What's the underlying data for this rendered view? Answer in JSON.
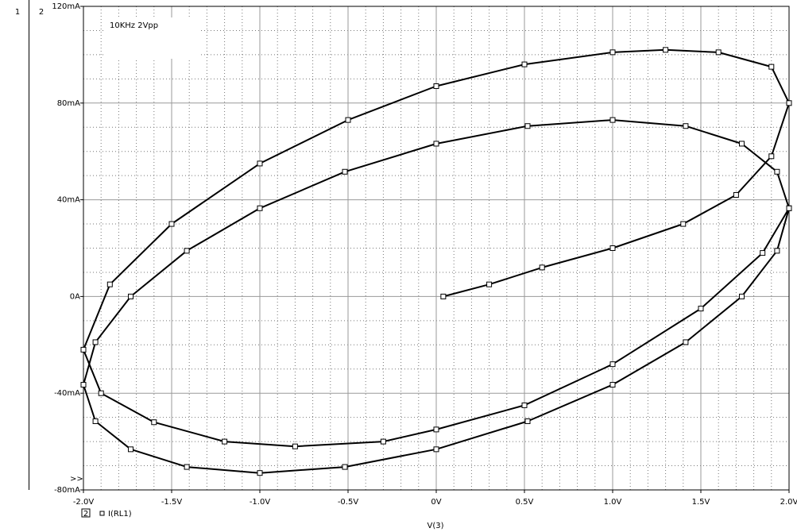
{
  "chart_data": {
    "type": "line",
    "plot_labels": [
      "1",
      "2"
    ],
    "annotation": "10KHz 2Vpp",
    "marker_label": ">>",
    "xlabel": "V(3)",
    "xlim": [
      -2,
      2
    ],
    "ylim": [
      -80,
      120
    ],
    "xticks": [
      {
        "value": -2,
        "label": "-2.0V"
      },
      {
        "value": -1.5,
        "label": "-1.5V"
      },
      {
        "value": -1,
        "label": "-1.0V"
      },
      {
        "value": -0.5,
        "label": "-0.5V"
      },
      {
        "value": 0,
        "label": "0V"
      },
      {
        "value": 0.5,
        "label": "0.5V"
      },
      {
        "value": 1,
        "label": "1.0V"
      },
      {
        "value": 1.5,
        "label": "1.5V"
      },
      {
        "value": 2,
        "label": "2.0V"
      }
    ],
    "yticks": [
      {
        "value": -80,
        "label": "-80mA"
      },
      {
        "value": -40,
        "label": "-40mA"
      },
      {
        "value": 0,
        "label": "0A"
      },
      {
        "value": 40,
        "label": "40mA"
      },
      {
        "value": 80,
        "label": "80mA"
      },
      {
        "value": 120,
        "label": "120mA"
      }
    ],
    "grid": true,
    "series": [
      {
        "index": "2",
        "name": "I(RL1)",
        "color": "#000000",
        "x": [
          0.04,
          0.3,
          0.6,
          1.0,
          1.4,
          1.7,
          1.9,
          2.0,
          1.9,
          1.6,
          1.3,
          1.0,
          0.5,
          0,
          -0.5,
          -1.0,
          -1.5,
          -1.85,
          -2.0,
          -1.9,
          -1.6,
          -1.2,
          -0.8,
          -0.3,
          0,
          0.5,
          1.0,
          1.5,
          1.85,
          2.0,
          1.932,
          1.732,
          1.414,
          1.0,
          0.518,
          0,
          -0.518,
          -1.0,
          -1.414,
          -1.732,
          -1.932,
          -2.0,
          -1.932,
          -1.732,
          -1.414,
          -1.0,
          -0.518,
          0,
          0.518,
          1.0,
          1.414,
          1.732,
          1.932,
          2.0
        ],
        "values": [
          0,
          5,
          12,
          20,
          30,
          42,
          58,
          80,
          95,
          101,
          102,
          101,
          96,
          87,
          73,
          55,
          30,
          5,
          -22,
          -40,
          -52,
          -60,
          -62,
          -60,
          -55,
          -45,
          -28,
          -5,
          18,
          36.5,
          51.6,
          63.2,
          70.5,
          73,
          70.5,
          63.2,
          51.6,
          36.5,
          18.9,
          0,
          -18.9,
          -36.5,
          -51.6,
          -63.2,
          -70.5,
          -73,
          -70.5,
          -63.2,
          -51.6,
          -36.5,
          -18.9,
          0,
          18.9,
          36.5
        ]
      }
    ]
  }
}
